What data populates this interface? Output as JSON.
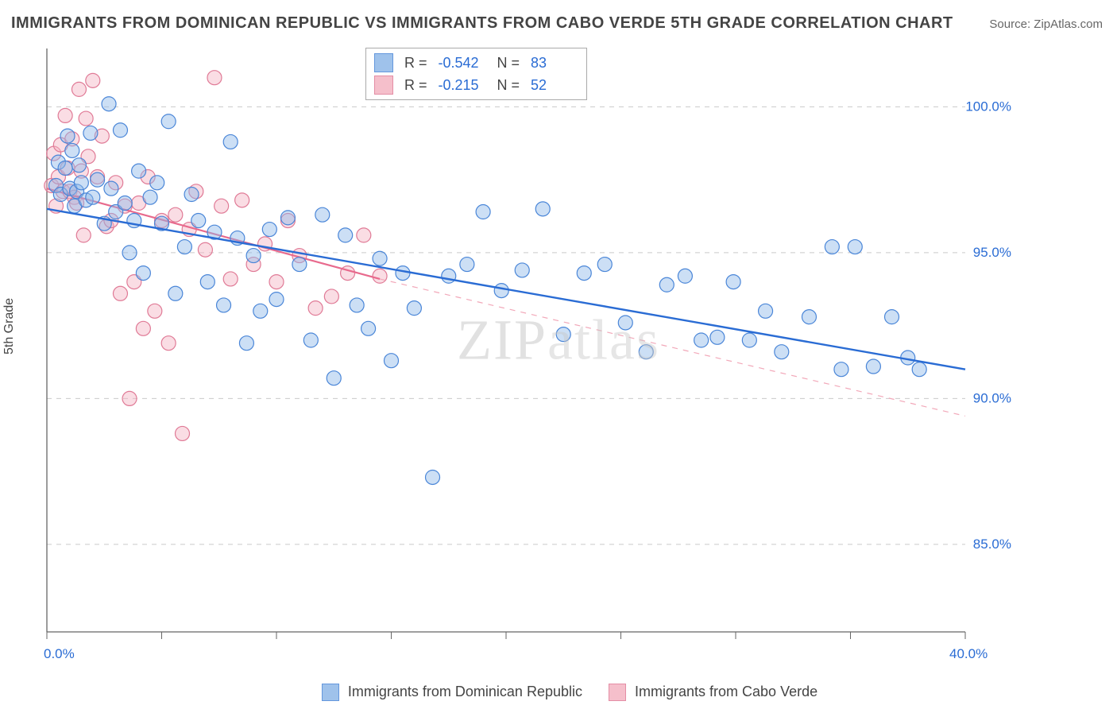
{
  "title": "IMMIGRANTS FROM DOMINICAN REPUBLIC VS IMMIGRANTS FROM CABO VERDE 5TH GRADE CORRELATION CHART",
  "source_label": "Source: ",
  "source_name": "ZipAtlas.com",
  "ylabel": "5th Grade",
  "watermark": "ZIPatlas",
  "chart": {
    "type": "scatter",
    "xlim": [
      0,
      40
    ],
    "ylim": [
      82,
      102
    ],
    "xtick_step": 5,
    "ytick_values": [
      85.0,
      90.0,
      95.0,
      100.0
    ],
    "ytick_labels": [
      "85.0%",
      "90.0%",
      "95.0%",
      "100.0%"
    ],
    "xtick_end_labels": {
      "left": "0.0%",
      "right": "40.0%"
    },
    "background": "#ffffff",
    "grid_color": "#c9c9c9",
    "grid_dash": "6,6",
    "axis_color": "#666666",
    "marker_radius": 9,
    "marker_stroke_width": 1.2,
    "series": [
      {
        "name": "Immigrants from Dominican Republic",
        "color_fill": "#8fb8e8",
        "color_stroke": "#4a86d8",
        "fill_opacity": 0.45,
        "R_label": "R =",
        "R": "-0.542",
        "N_label": "N =",
        "N": "83",
        "trend": {
          "x1": 0,
          "y1": 96.5,
          "x2": 40,
          "y2": 91.0,
          "color": "#2a6cd4",
          "width": 2.4,
          "dash": "none"
        },
        "trend_ext": null,
        "points": [
          [
            0.4,
            97.3
          ],
          [
            0.5,
            98.1
          ],
          [
            0.6,
            97.0
          ],
          [
            0.8,
            97.9
          ],
          [
            0.9,
            99.0
          ],
          [
            1.0,
            97.2
          ],
          [
            1.1,
            98.5
          ],
          [
            1.2,
            96.6
          ],
          [
            1.3,
            97.1
          ],
          [
            1.4,
            98.0
          ],
          [
            1.5,
            97.4
          ],
          [
            1.7,
            96.8
          ],
          [
            1.9,
            99.1
          ],
          [
            2.0,
            96.9
          ],
          [
            2.2,
            97.5
          ],
          [
            2.5,
            96.0
          ],
          [
            2.7,
            100.1
          ],
          [
            2.8,
            97.2
          ],
          [
            3.0,
            96.4
          ],
          [
            3.2,
            99.2
          ],
          [
            3.4,
            96.7
          ],
          [
            3.6,
            95.0
          ],
          [
            3.8,
            96.1
          ],
          [
            4.0,
            97.8
          ],
          [
            4.2,
            94.3
          ],
          [
            4.5,
            96.9
          ],
          [
            4.8,
            97.4
          ],
          [
            5.0,
            96.0
          ],
          [
            5.3,
            99.5
          ],
          [
            5.6,
            93.6
          ],
          [
            6.0,
            95.2
          ],
          [
            6.3,
            97.0
          ],
          [
            6.6,
            96.1
          ],
          [
            7.0,
            94.0
          ],
          [
            7.3,
            95.7
          ],
          [
            7.7,
            93.2
          ],
          [
            8.0,
            98.8
          ],
          [
            8.3,
            95.5
          ],
          [
            8.7,
            91.9
          ],
          [
            9.0,
            94.9
          ],
          [
            9.3,
            93.0
          ],
          [
            9.7,
            95.8
          ],
          [
            10.0,
            93.4
          ],
          [
            10.5,
            96.2
          ],
          [
            11.0,
            94.6
          ],
          [
            11.5,
            92.0
          ],
          [
            12.0,
            96.3
          ],
          [
            12.5,
            90.7
          ],
          [
            13.0,
            95.6
          ],
          [
            13.5,
            93.2
          ],
          [
            14.0,
            92.4
          ],
          [
            14.5,
            94.8
          ],
          [
            15.0,
            91.3
          ],
          [
            15.5,
            94.3
          ],
          [
            16.0,
            93.1
          ],
          [
            16.8,
            87.3
          ],
          [
            17.5,
            94.2
          ],
          [
            18.3,
            94.6
          ],
          [
            19.0,
            96.4
          ],
          [
            19.8,
            93.7
          ],
          [
            20.7,
            94.4
          ],
          [
            21.6,
            96.5
          ],
          [
            22.5,
            92.2
          ],
          [
            23.4,
            94.3
          ],
          [
            24.3,
            94.6
          ],
          [
            25.2,
            92.6
          ],
          [
            26.1,
            91.6
          ],
          [
            27.0,
            93.9
          ],
          [
            27.8,
            94.2
          ],
          [
            28.5,
            92.0
          ],
          [
            29.2,
            92.1
          ],
          [
            29.9,
            94.0
          ],
          [
            30.6,
            92.0
          ],
          [
            31.3,
            93.0
          ],
          [
            32.0,
            91.6
          ],
          [
            33.2,
            92.8
          ],
          [
            34.2,
            95.2
          ],
          [
            34.6,
            91.0
          ],
          [
            35.2,
            95.2
          ],
          [
            36.0,
            91.1
          ],
          [
            36.8,
            92.8
          ],
          [
            37.5,
            91.4
          ],
          [
            38.0,
            91.0
          ]
        ]
      },
      {
        "name": "Immigrants from Cabo Verde",
        "color_fill": "#f4b4c3",
        "color_stroke": "#e07a96",
        "fill_opacity": 0.45,
        "R_label": "R =",
        "R": "-0.215",
        "N_label": "N =",
        "N": "52",
        "trend": {
          "x1": 0,
          "y1": 97.2,
          "x2": 14.5,
          "y2": 94.1,
          "color": "#e86a8d",
          "width": 2.2,
          "dash": "none"
        },
        "trend_ext": {
          "x1": 14.5,
          "y1": 94.1,
          "x2": 40,
          "y2": 89.4,
          "color": "#f2a8b9",
          "width": 1.2,
          "dash": "7,7"
        },
        "points": [
          [
            0.2,
            97.3
          ],
          [
            0.3,
            98.4
          ],
          [
            0.4,
            96.6
          ],
          [
            0.5,
            97.6
          ],
          [
            0.6,
            98.7
          ],
          [
            0.7,
            97.1
          ],
          [
            0.8,
            99.7
          ],
          [
            0.9,
            97.9
          ],
          [
            1.0,
            97.1
          ],
          [
            1.1,
            98.9
          ],
          [
            1.2,
            96.9
          ],
          [
            1.3,
            96.7
          ],
          [
            1.4,
            100.6
          ],
          [
            1.5,
            97.8
          ],
          [
            1.6,
            95.6
          ],
          [
            1.7,
            99.6
          ],
          [
            1.8,
            98.3
          ],
          [
            2.0,
            100.9
          ],
          [
            2.2,
            97.6
          ],
          [
            2.4,
            99.0
          ],
          [
            2.6,
            95.9
          ],
          [
            2.8,
            96.1
          ],
          [
            3.0,
            97.4
          ],
          [
            3.2,
            93.6
          ],
          [
            3.4,
            96.6
          ],
          [
            3.6,
            90.0
          ],
          [
            3.8,
            94.0
          ],
          [
            4.0,
            96.7
          ],
          [
            4.2,
            92.4
          ],
          [
            4.4,
            97.6
          ],
          [
            4.7,
            93.0
          ],
          [
            5.0,
            96.1
          ],
          [
            5.3,
            91.9
          ],
          [
            5.6,
            96.3
          ],
          [
            5.9,
            88.8
          ],
          [
            6.2,
            95.8
          ],
          [
            6.5,
            97.1
          ],
          [
            6.9,
            95.1
          ],
          [
            7.3,
            101.0
          ],
          [
            7.6,
            96.6
          ],
          [
            8.0,
            94.1
          ],
          [
            8.5,
            96.8
          ],
          [
            9.0,
            94.6
          ],
          [
            9.5,
            95.3
          ],
          [
            10.0,
            94.0
          ],
          [
            10.5,
            96.1
          ],
          [
            11.0,
            94.9
          ],
          [
            11.7,
            93.1
          ],
          [
            12.4,
            93.5
          ],
          [
            13.1,
            94.3
          ],
          [
            13.8,
            95.6
          ],
          [
            14.5,
            94.2
          ]
        ]
      }
    ]
  }
}
